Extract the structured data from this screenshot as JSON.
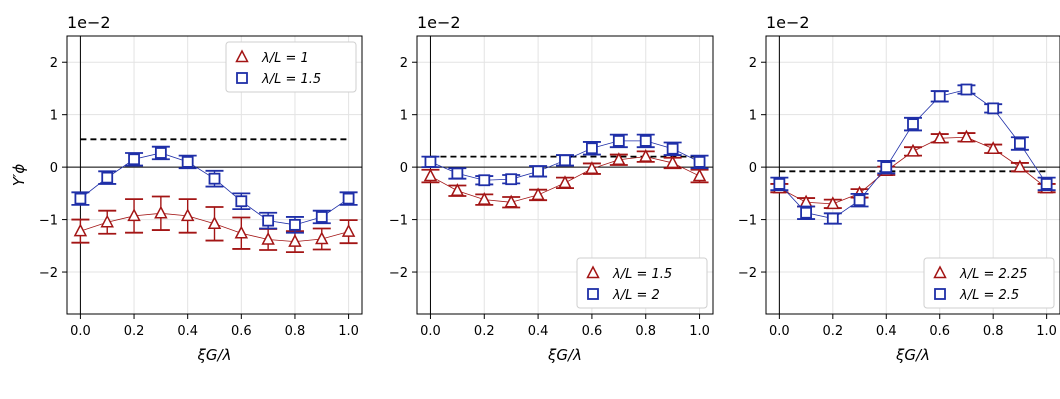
{
  "chart_data": [
    {
      "type": "scatter",
      "x_ticks": [
        "0.0",
        "0.2",
        "0.4",
        "0.6",
        "0.8",
        "1.0"
      ],
      "y_ticks": [
        "−2",
        "−1",
        "0",
        "1",
        "2"
      ],
      "scale_label": "1e−2",
      "xlabel": "ξG/λ",
      "ylabel": "Y′ϕ",
      "xlim": [
        -0.05,
        1.05
      ],
      "ylim": [
        -2.8,
        2.5
      ],
      "grid": true,
      "legend_position": "top-right",
      "reference_line": {
        "y": 0.53,
        "style": "dashed"
      },
      "series": [
        {
          "name": "λ/L = 1",
          "marker": "triangle",
          "color": "#a31515",
          "x": [
            0.0,
            0.1,
            0.2,
            0.3,
            0.4,
            0.5,
            0.6,
            0.7,
            0.8,
            0.9,
            1.0
          ],
          "y": [
            -1.22,
            -1.05,
            -0.93,
            -0.88,
            -0.93,
            -1.08,
            -1.26,
            -1.38,
            -1.42,
            -1.37,
            -1.23
          ],
          "err": [
            0.22,
            0.22,
            0.32,
            0.32,
            0.32,
            0.32,
            0.3,
            0.2,
            0.2,
            0.2,
            0.22
          ]
        },
        {
          "name": "λ/L = 1.5",
          "marker": "square",
          "color": "#1f2fa8",
          "x": [
            0.0,
            0.1,
            0.2,
            0.3,
            0.4,
            0.5,
            0.6,
            0.7,
            0.8,
            0.9,
            1.0
          ],
          "y": [
            -0.6,
            -0.2,
            0.15,
            0.27,
            0.1,
            -0.22,
            -0.65,
            -1.02,
            -1.1,
            -0.95,
            -0.6
          ],
          "err": [
            0.12,
            0.12,
            0.12,
            0.12,
            0.12,
            0.15,
            0.15,
            0.15,
            0.15,
            0.12,
            0.12
          ]
        }
      ]
    },
    {
      "type": "scatter",
      "x_ticks": [
        "0.0",
        "0.2",
        "0.4",
        "0.6",
        "0.8",
        "1.0"
      ],
      "y_ticks": [
        "−2",
        "−1",
        "0",
        "1",
        "2"
      ],
      "scale_label": "1e−2",
      "xlabel": "ξG/λ",
      "ylabel": "",
      "xlim": [
        -0.05,
        1.05
      ],
      "ylim": [
        -2.8,
        2.5
      ],
      "grid": true,
      "legend_position": "bottom-right",
      "reference_line": {
        "y": 0.2,
        "style": "dashed"
      },
      "series": [
        {
          "name": "λ/L = 1.5",
          "marker": "triangle",
          "color": "#a31515",
          "x": [
            0.0,
            0.1,
            0.2,
            0.3,
            0.4,
            0.5,
            0.6,
            0.7,
            0.8,
            0.9,
            1.0
          ],
          "y": [
            -0.17,
            -0.45,
            -0.62,
            -0.67,
            -0.53,
            -0.3,
            -0.03,
            0.14,
            0.2,
            0.08,
            -0.17
          ],
          "err": [
            0.12,
            0.1,
            0.1,
            0.1,
            0.1,
            0.1,
            0.1,
            0.1,
            0.1,
            0.1,
            0.12
          ]
        },
        {
          "name": "λ/L = 2",
          "marker": "square",
          "color": "#1f2fa8",
          "x": [
            0.0,
            0.1,
            0.2,
            0.3,
            0.4,
            0.5,
            0.6,
            0.7,
            0.8,
            0.9,
            1.0
          ],
          "y": [
            0.1,
            -0.12,
            -0.25,
            -0.23,
            -0.08,
            0.13,
            0.36,
            0.5,
            0.5,
            0.35,
            0.1
          ],
          "err": [
            0.1,
            0.1,
            0.08,
            0.08,
            0.1,
            0.1,
            0.12,
            0.12,
            0.12,
            0.12,
            0.12
          ]
        }
      ]
    },
    {
      "type": "scatter",
      "x_ticks": [
        "0.0",
        "0.2",
        "0.4",
        "0.6",
        "0.8",
        "1.0"
      ],
      "y_ticks": [
        "−2",
        "−1",
        "0",
        "1",
        "2"
      ],
      "scale_label": "1e−2",
      "xlabel": "ξG/λ",
      "ylabel": "",
      "xlim": [
        -0.05,
        1.05
      ],
      "ylim": [
        -2.8,
        2.5
      ],
      "grid": true,
      "legend_position": "bottom-right",
      "reference_line": {
        "y": -0.08,
        "style": "dashed"
      },
      "series": [
        {
          "name": "λ/L = 2.25",
          "marker": "triangle",
          "color": "#a31515",
          "x": [
            0.0,
            0.1,
            0.2,
            0.3,
            0.4,
            0.5,
            0.6,
            0.7,
            0.8,
            0.9,
            1.0
          ],
          "y": [
            -0.4,
            -0.67,
            -0.7,
            -0.5,
            -0.07,
            0.3,
            0.55,
            0.57,
            0.35,
            0.0,
            -0.4
          ],
          "err": [
            0.08,
            0.08,
            0.08,
            0.08,
            0.08,
            0.08,
            0.08,
            0.08,
            0.08,
            0.08,
            0.08
          ]
        },
        {
          "name": "λ/L = 2.5",
          "marker": "square",
          "color": "#1f2fa8",
          "x": [
            0.0,
            0.1,
            0.2,
            0.3,
            0.4,
            0.5,
            0.6,
            0.7,
            0.8,
            0.9,
            1.0
          ],
          "y": [
            -0.32,
            -0.87,
            -0.98,
            -0.63,
            0.0,
            0.82,
            1.35,
            1.48,
            1.12,
            0.45,
            -0.32
          ],
          "err": [
            0.12,
            0.12,
            0.1,
            0.12,
            0.12,
            0.12,
            0.1,
            0.08,
            0.08,
            0.12,
            0.12
          ]
        }
      ]
    }
  ]
}
